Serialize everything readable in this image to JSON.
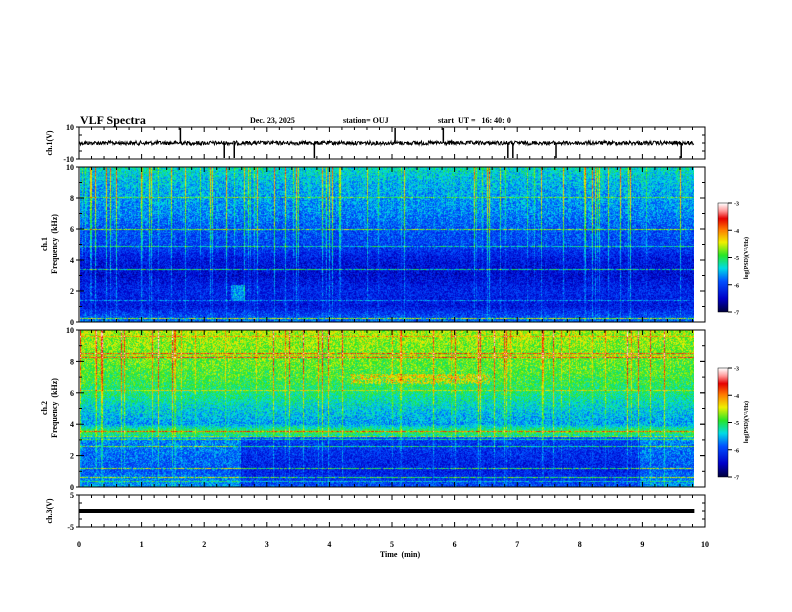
{
  "header": {
    "title": "VLF Spectra",
    "date": "Dec. 23, 2025",
    "station": "station= OUJ",
    "start_ut": "start  UT =   16: 40: 0"
  },
  "colors": {
    "axis": "#000000",
    "background": "#ffffff"
  },
  "chart_data": [
    {
      "type": "line",
      "name": "ch1-waveform",
      "ylabel": "ch.1(V)",
      "ylim": [
        -10,
        10
      ],
      "yticks": [
        "10",
        "-10"
      ],
      "xlim": [
        0,
        10
      ],
      "data_end_min": 9.83,
      "baseline": 0,
      "note": "noisy waveform near 0 V with spikes"
    },
    {
      "type": "heatmap",
      "name": "ch1-spectrogram",
      "ylabel_line1": "ch.1",
      "ylabel_line2": "Frequency  (kHz)",
      "ylim": [
        0,
        10
      ],
      "yticks": [
        "0",
        "2",
        "4",
        "6",
        "8",
        "10"
      ],
      "xlim": [
        0,
        10
      ],
      "colorbar": {
        "label": "log(PSD)(V²/Hz)",
        "range": [
          -7,
          -3
        ],
        "ticks": [
          "-3",
          "-4",
          "-5",
          "-6",
          "-7"
        ]
      },
      "mean_level_by_freq_khz": {
        "0": -5.8,
        "1": -6.3,
        "2": -6.2,
        "3": -6.4,
        "4": -6.3,
        "5": -6.0,
        "6": -5.9,
        "7": -5.7,
        "8": -5.6,
        "9": -5.5,
        "10": -5.3
      }
    },
    {
      "type": "heatmap",
      "name": "ch2-spectrogram",
      "ylabel_line1": "ch.2",
      "ylabel_line2": "Frequency  (kHz)",
      "ylim": [
        0,
        10
      ],
      "yticks": [
        "0",
        "2",
        "4",
        "6",
        "8",
        "10"
      ],
      "xlim": [
        0,
        10
      ],
      "colorbar": {
        "label": "log(PSD)(V²/Hz)",
        "range": [
          -7,
          -3
        ],
        "ticks": [
          "-3",
          "-4",
          "-5",
          "-6",
          "-7"
        ]
      },
      "mean_level_by_freq_khz": {
        "0": -5.6,
        "1": -5.9,
        "2": -5.8,
        "3": -5.7,
        "3.5": -4.9,
        "4": -5.6,
        "5": -5.4,
        "6": -5.1,
        "7": -4.9,
        "8": -4.8,
        "9": -4.7,
        "10": -4.6
      }
    },
    {
      "type": "line",
      "name": "ch3-waveform",
      "ylabel": "ch.3(V)",
      "ylim": [
        -5,
        5
      ],
      "yticks": [
        "5",
        "-5"
      ],
      "xlim": [
        0,
        10
      ],
      "data_end_min": 9.83,
      "constant_value": 0
    }
  ],
  "xaxis": {
    "label": "Time  (min)",
    "ticks": [
      "0",
      "1",
      "2",
      "3",
      "4",
      "5",
      "6",
      "7",
      "8",
      "9",
      "10"
    ]
  }
}
